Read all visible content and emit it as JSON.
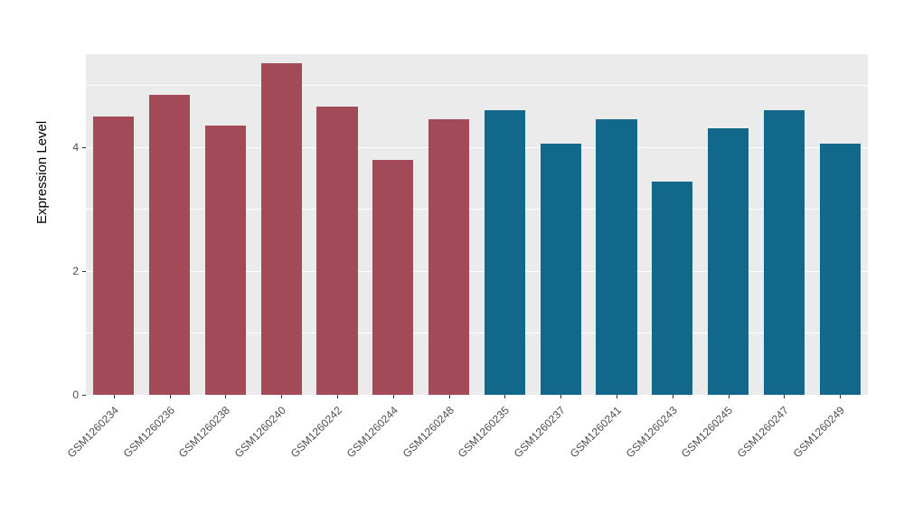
{
  "chart_data": {
    "type": "bar",
    "title": "",
    "xlabel": "",
    "ylabel": "Expression Level",
    "categories": [
      "GSM1260234",
      "GSM1260236",
      "GSM1260238",
      "GSM1260240",
      "GSM1260242",
      "GSM1260244",
      "GSM1260248",
      "GSM1260235",
      "GSM1260237",
      "GSM1260241",
      "GSM1260243",
      "GSM1260245",
      "GSM1260247",
      "GSM1260249"
    ],
    "values": [
      4.5,
      4.85,
      4.35,
      5.35,
      4.65,
      3.8,
      4.45,
      4.6,
      4.05,
      4.45,
      3.45,
      4.3,
      4.6,
      4.05
    ],
    "bar_groups": [
      0,
      0,
      0,
      0,
      0,
      0,
      0,
      1,
      1,
      1,
      1,
      1,
      1,
      1
    ],
    "group_colors": [
      "#A34A59",
      "#12688A"
    ],
    "ylim": [
      0,
      5.5
    ],
    "yticks": [
      0,
      2,
      4
    ],
    "yticks_minor": [
      1,
      3,
      5
    ],
    "grid": true,
    "legend": "none",
    "panel_background": "#EBEBEB",
    "grid_color": "#FFFFFF",
    "bar_width_fraction": 0.73
  }
}
